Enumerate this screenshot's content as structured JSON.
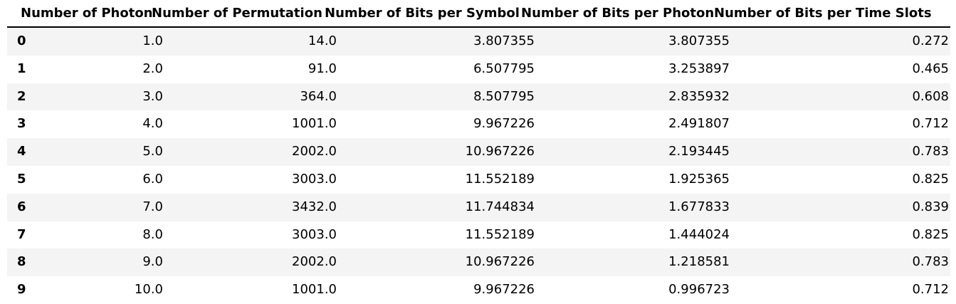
{
  "table": {
    "columns": [
      "Number of Photon",
      "Number of Permutation",
      "Number of Bits per Symbol",
      "Number of Bits per Photon",
      "Number of Bits per Time Slots"
    ],
    "rows": [
      {
        "index": "0",
        "cells": [
          "1.0",
          "14.0",
          "3.807355",
          "3.807355",
          "0.272"
        ]
      },
      {
        "index": "1",
        "cells": [
          "2.0",
          "91.0",
          "6.507795",
          "3.253897",
          "0.465"
        ]
      },
      {
        "index": "2",
        "cells": [
          "3.0",
          "364.0",
          "8.507795",
          "2.835932",
          "0.608"
        ]
      },
      {
        "index": "3",
        "cells": [
          "4.0",
          "1001.0",
          "9.967226",
          "2.491807",
          "0.712"
        ]
      },
      {
        "index": "4",
        "cells": [
          "5.0",
          "2002.0",
          "10.967226",
          "2.193445",
          "0.783"
        ]
      },
      {
        "index": "5",
        "cells": [
          "6.0",
          "3003.0",
          "11.552189",
          "1.925365",
          "0.825"
        ]
      },
      {
        "index": "6",
        "cells": [
          "7.0",
          "3432.0",
          "11.744834",
          "1.677833",
          "0.839"
        ]
      },
      {
        "index": "7",
        "cells": [
          "8.0",
          "3003.0",
          "11.552189",
          "1.444024",
          "0.825"
        ]
      },
      {
        "index": "8",
        "cells": [
          "9.0",
          "2002.0",
          "10.967226",
          "1.218581",
          "0.783"
        ]
      },
      {
        "index": "9",
        "cells": [
          "10.0",
          "1001.0",
          "9.967226",
          "0.996723",
          "0.712"
        ]
      }
    ]
  }
}
